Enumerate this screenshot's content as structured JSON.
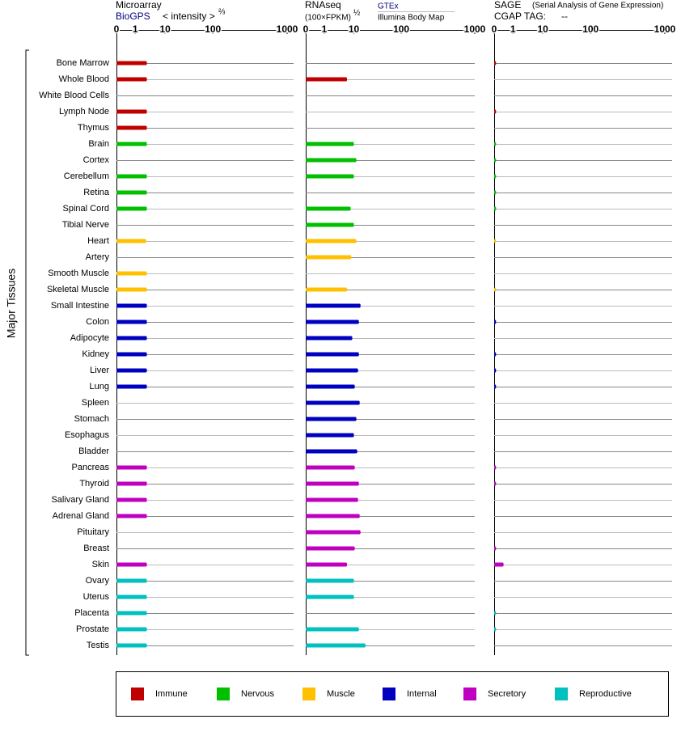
{
  "chart_data": {
    "type": "bar",
    "category_label": "Major Tissues",
    "categories": [
      "Bone Marrow",
      "Whole Blood",
      "White Blood Cells",
      "Lymph Node",
      "Thymus",
      "Brain",
      "Cortex",
      "Cerebellum",
      "Retina",
      "Spinal Cord",
      "Tibial Nerve",
      "Heart",
      "Artery",
      "Smooth Muscle",
      "Skeletal Muscle",
      "Small Intestine",
      "Colon",
      "Adipocyte",
      "Kidney",
      "Liver",
      "Lung",
      "Spleen",
      "Stomach",
      "Esophagus",
      "Bladder",
      "Pancreas",
      "Thyroid",
      "Salivary Gland",
      "Adrenal Gland",
      "Pituitary",
      "Breast",
      "Skin",
      "Ovary",
      "Uterus",
      "Placenta",
      "Prostate",
      "Testis"
    ],
    "category_group": [
      0,
      0,
      0,
      0,
      0,
      1,
      1,
      1,
      1,
      1,
      1,
      2,
      2,
      2,
      2,
      3,
      3,
      3,
      3,
      3,
      3,
      3,
      3,
      3,
      3,
      4,
      4,
      4,
      4,
      4,
      4,
      4,
      5,
      5,
      5,
      5,
      5
    ],
    "groups": [
      {
        "name": "Immune",
        "color": "#c00000"
      },
      {
        "name": "Nervous",
        "color": "#00c000"
      },
      {
        "name": "Muscle",
        "color": "#ffc000"
      },
      {
        "name": "Internal",
        "color": "#0000c0"
      },
      {
        "name": "Secretory",
        "color": "#c000c0"
      },
      {
        "name": "Reproductive",
        "color": "#00c0c0"
      }
    ],
    "panels": [
      {
        "title": "Microarray",
        "source": "BioGPS",
        "unit": "< intensity >",
        "exponent": "⅔",
        "xlim": [
          0,
          1000
        ],
        "xticks": [
          0,
          1,
          10,
          100,
          1000
        ],
        "values": [
          4.5,
          4.5,
          null,
          4.5,
          4.5,
          4.5,
          null,
          4.5,
          4.5,
          4.5,
          null,
          4.3,
          null,
          4.5,
          4.5,
          4.5,
          4.5,
          4.5,
          4.5,
          4.5,
          4.5,
          null,
          null,
          null,
          null,
          4.5,
          4.5,
          4.5,
          4.5,
          null,
          null,
          4.5,
          4.5,
          4.5,
          4.5,
          4.5,
          4.5
        ]
      },
      {
        "title": "RNAseq",
        "unit": "(100×FPKM)",
        "exponent": "½",
        "source": "GTEx",
        "source2": "Illumina Body Map",
        "xlim": [
          0,
          1000
        ],
        "xticks": [
          0,
          1,
          10,
          100,
          1000
        ],
        "values": [
          null,
          7.9,
          null,
          null,
          null,
          10,
          14.7,
          10,
          null,
          9,
          10,
          14.7,
          9.2,
          null,
          7.9,
          22.6,
          19.5,
          9.5,
          19.5,
          17.9,
          11.6,
          21,
          14.7,
          10,
          16.3,
          11.6,
          19.5,
          17.9,
          21,
          22.6,
          11.6,
          7.9,
          10,
          10,
          null,
          19.5,
          32
        ]
      },
      {
        "title": "SAGE",
        "subtitle": "(Serial Analysis of Gene Expression)",
        "tag_label": "CGAP TAG:",
        "tag": "--",
        "xlim": [
          0,
          1000
        ],
        "xticks": [
          0,
          1,
          10,
          100,
          1000
        ],
        "values": [
          0.1,
          null,
          null,
          0.1,
          null,
          0.1,
          0.1,
          0.1,
          0.1,
          0.1,
          null,
          0.1,
          null,
          null,
          0.1,
          null,
          0.1,
          null,
          0.1,
          0.1,
          0.1,
          null,
          null,
          null,
          null,
          0.1,
          0.1,
          null,
          null,
          null,
          0.1,
          0.5,
          null,
          null,
          0.1,
          0.1,
          null
        ]
      }
    ]
  }
}
